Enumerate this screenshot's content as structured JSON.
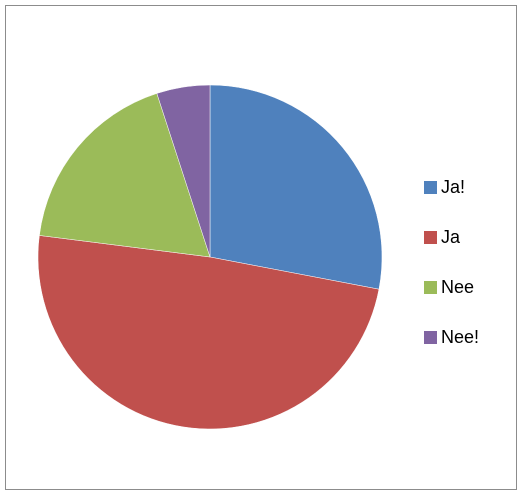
{
  "chart_data": {
    "type": "pie",
    "title": "",
    "categories": [
      "Ja!",
      "Ja",
      "Nee",
      "Nee!"
    ],
    "values": [
      28,
      49,
      18,
      5
    ],
    "colors": [
      "#4f81bd",
      "#c0504d",
      "#9bbb59",
      "#8064a2"
    ],
    "start_angle_deg": 0,
    "direction": "clockwise",
    "legend": "right"
  }
}
